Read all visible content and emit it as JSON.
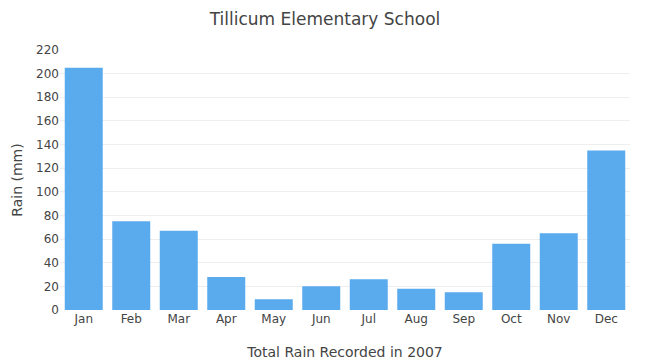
{
  "chart_data": {
    "type": "bar",
    "title": "Tillicum Elementary School",
    "xlabel": "Total Rain Recorded in 2007",
    "ylabel": "Rain (mm)",
    "categories": [
      "Jan",
      "Feb",
      "Mar",
      "Apr",
      "May",
      "Jun",
      "Jul",
      "Aug",
      "Sep",
      "Oct",
      "Nov",
      "Dec"
    ],
    "values": [
      205,
      75,
      67,
      28,
      9,
      20,
      26,
      18,
      15,
      56,
      65,
      135
    ],
    "color": "#5aaaee",
    "ylim": [
      0,
      220
    ],
    "yticks": [
      0,
      20,
      40,
      60,
      80,
      100,
      120,
      140,
      160,
      180,
      200,
      220
    ],
    "grid": true
  }
}
